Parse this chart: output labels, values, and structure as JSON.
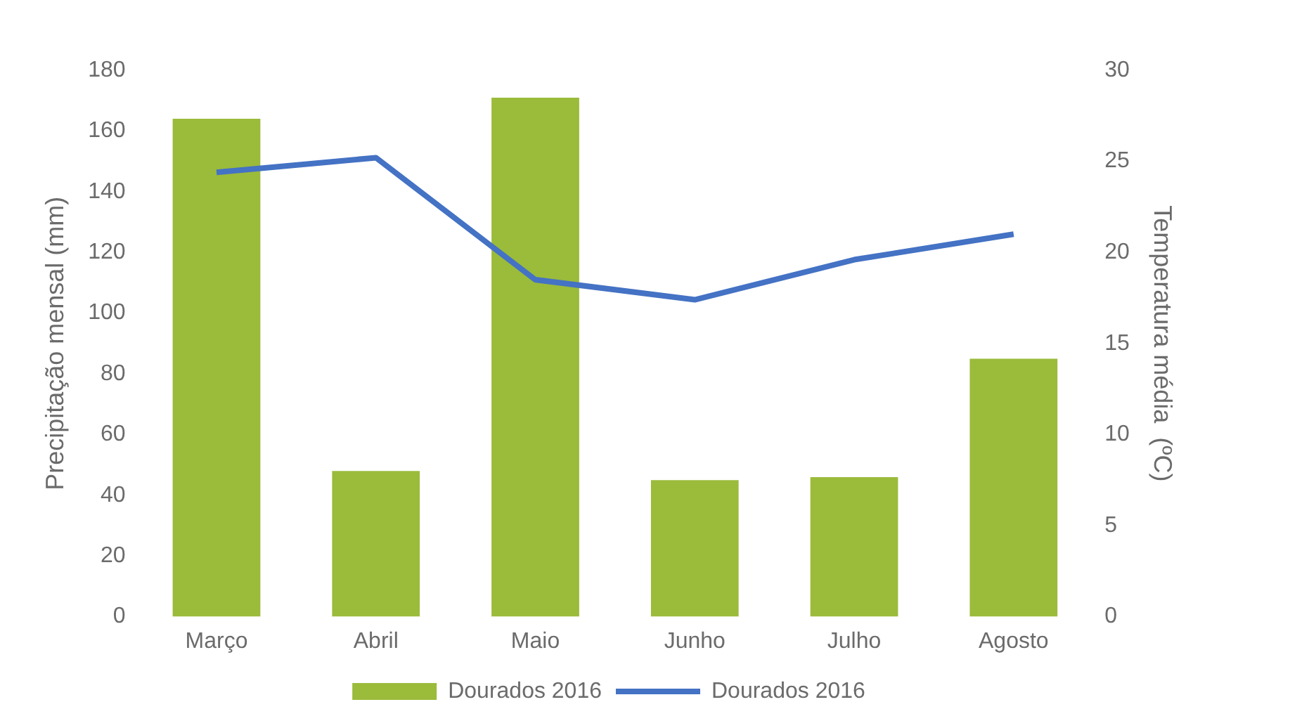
{
  "chart_data": {
    "type": "bar",
    "categories": [
      "Março",
      "Abril",
      "Maio",
      "Junho",
      "Julho",
      "Agosto"
    ],
    "series": [
      {
        "name": "Dourados 2016",
        "color": "#9bbb3b",
        "values": [
          164,
          48,
          171,
          45,
          46,
          85
        ]
      },
      {
        "name": "Dourados 2016",
        "type": "line",
        "axis": "y2",
        "color": "#4472c4",
        "values": [
          24.4,
          25.2,
          18.5,
          17.4,
          19.6,
          21.0
        ]
      }
    ],
    "ylabel": "Precipitação mensal (mm)",
    "y2label": "Temperatura média  (ºC)",
    "ylim": [
      0,
      180
    ],
    "yticks": [
      0,
      20,
      40,
      60,
      80,
      100,
      120,
      140,
      160,
      180
    ],
    "y2lim": [
      0,
      30
    ],
    "y2ticks": [
      0,
      5,
      10,
      15,
      20,
      25,
      30
    ],
    "grid": false,
    "legend": "bottom",
    "marker": "none",
    "line_style": "solid"
  }
}
